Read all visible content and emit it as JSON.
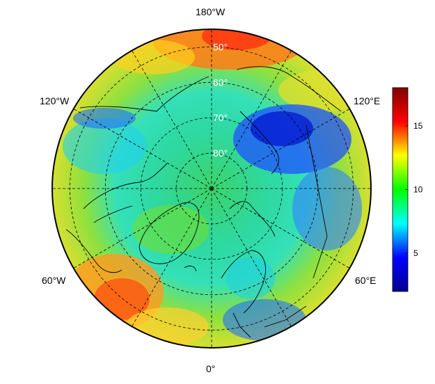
{
  "map": {
    "projection": "north-polar-stereographic",
    "longitude_labels": {
      "top": "180°W",
      "bottom": "0°",
      "upper_left": "120°W",
      "upper_right": "120°E",
      "lower_left": "60°W",
      "lower_right": "60°E"
    },
    "latitude_labels": [
      "50°",
      "60°",
      "70°",
      "80°"
    ],
    "graticule_style": "dashed",
    "coastlines": true
  },
  "colorbar": {
    "range": [
      2,
      18
    ],
    "ticks": [
      "5",
      "10",
      "15"
    ],
    "colormap": "jet",
    "colors": [
      "#00008f",
      "#0000ff",
      "#00ffff",
      "#00ff00",
      "#ffff00",
      "#ff0000",
      "#800000"
    ]
  }
}
